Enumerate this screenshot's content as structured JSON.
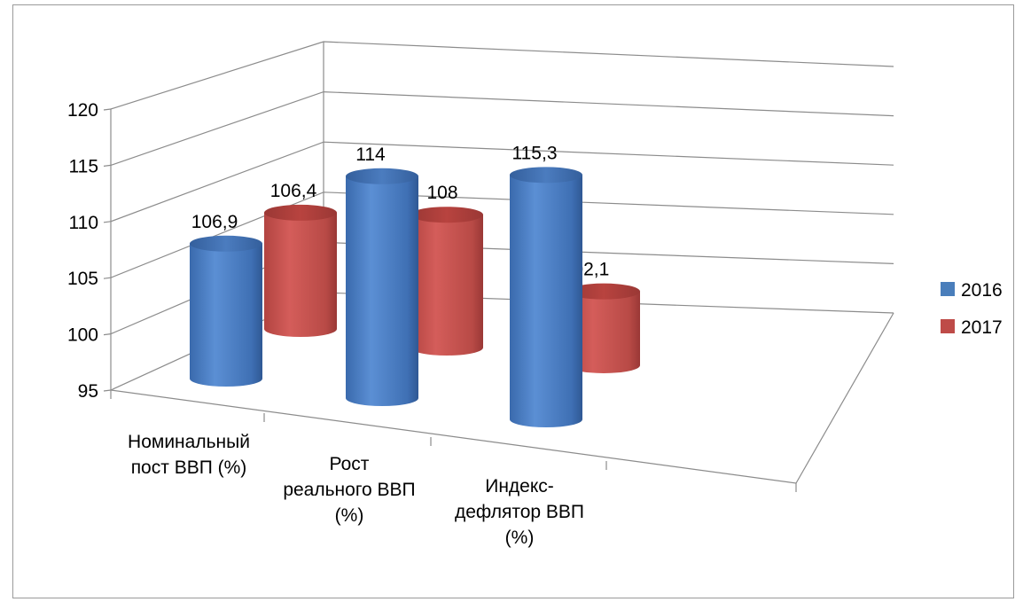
{
  "chart_data": {
    "type": "bar",
    "subtype": "3d-cylinder",
    "title": "",
    "xlabel": "",
    "ylabel": "",
    "ylim": [
      95,
      120
    ],
    "yticks": [
      "95",
      "100",
      "105",
      "110",
      "115",
      "120"
    ],
    "grid": true,
    "legend_position": "right",
    "categories": [
      [
        "Номинальный",
        "пост ВВП (%)"
      ],
      [
        "Рост",
        "реального ВВП",
        "(%)"
      ],
      [
        "Индекс-",
        "дефлятор ВВП",
        "(%)"
      ]
    ],
    "series": [
      {
        "name": "2016",
        "color": "#4a7ebb",
        "values": [
          106.9,
          114,
          115.3
        ],
        "labels": [
          "106,9",
          "114",
          "115,3"
        ]
      },
      {
        "name": "2017",
        "color": "#be4b48",
        "values": [
          106.4,
          108,
          102.1
        ],
        "labels": [
          "106,4",
          "108",
          "102,1"
        ]
      }
    ]
  }
}
